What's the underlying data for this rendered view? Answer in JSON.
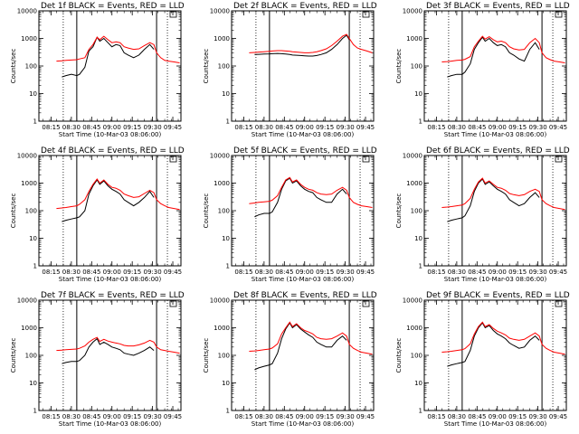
{
  "figure": {
    "x_start_label": "Start Time (10-Mar-03 08:06:00)",
    "y_label": "Counts/sec",
    "x_tick_labels": [
      "08:15",
      "08:30",
      "08:45",
      "09:00",
      "09:15",
      "09:30",
      "09:45"
    ],
    "y_tick_labels": [
      "1",
      "10",
      "100",
      "1000",
      "10000"
    ],
    "colors": {
      "events": "#000000",
      "lld": "#ff0000"
    }
  },
  "chart_data": [
    {
      "type": "line",
      "title": "Det 1f BLACK = Events, RED = LLD",
      "xlabel": "Start Time (10-Mar-03 08:06:00)",
      "ylabel": "Counts/sec",
      "x_unit": "minutes after 08:06:00",
      "xlim": [
        0,
        105
      ],
      "ylim": [
        1,
        10000
      ],
      "y_scale": "log",
      "x": [
        13,
        17,
        20,
        24,
        28,
        30,
        34,
        37,
        40,
        43,
        45,
        48,
        51,
        54,
        57,
        60,
        63,
        66,
        70,
        74,
        78,
        82,
        85,
        87,
        90,
        93,
        96,
        100,
        104
      ],
      "series": [
        {
          "name": "BLACK = Events",
          "values": [
            null,
            40,
            45,
            50,
            45,
            50,
            90,
            350,
            500,
            1100,
            800,
            1000,
            700,
            500,
            600,
            550,
            300,
            250,
            200,
            250,
            400,
            600,
            400,
            null,
            null,
            null,
            null,
            null,
            null
          ]
        },
        {
          "name": "RED = LLD",
          "values": [
            150,
            155,
            160,
            165,
            170,
            180,
            200,
            400,
            600,
            1100,
            900,
            1200,
            900,
            700,
            750,
            700,
            500,
            450,
            400,
            420,
            550,
            700,
            600,
            300,
            200,
            160,
            150,
            140,
            130
          ]
        }
      ],
      "vlines": {
        "solid": [
          28,
          87
        ],
        "dotted": [
          18,
          95
        ]
      }
    },
    {
      "type": "line",
      "title": "Det 2f BLACK = Events, RED = LLD",
      "xlabel": "Start Time (10-Mar-03 08:06:00)",
      "ylabel": "Counts/sec",
      "x_unit": "minutes after 08:06:00",
      "xlim": [
        0,
        105
      ],
      "ylim": [
        1,
        10000
      ],
      "y_scale": "log",
      "x": [
        13,
        17,
        20,
        24,
        28,
        30,
        34,
        37,
        40,
        43,
        45,
        48,
        51,
        54,
        57,
        60,
        63,
        66,
        70,
        74,
        78,
        82,
        85,
        87,
        90,
        93,
        96,
        100,
        104
      ],
      "series": [
        {
          "name": "BLACK = Events",
          "values": [
            null,
            260,
            265,
            270,
            275,
            280,
            285,
            280,
            270,
            260,
            250,
            245,
            240,
            235,
            230,
            230,
            240,
            260,
            300,
            400,
            600,
            1000,
            1300,
            900,
            null,
            null,
            null,
            null,
            null
          ]
        },
        {
          "name": "RED = LLD",
          "values": [
            300,
            310,
            320,
            330,
            340,
            350,
            360,
            360,
            350,
            340,
            330,
            320,
            310,
            300,
            300,
            310,
            330,
            360,
            420,
            550,
            800,
            1200,
            1400,
            1000,
            600,
            450,
            400,
            350,
            300
          ]
        }
      ],
      "vlines": {
        "solid": [
          28,
          87
        ],
        "dotted": [
          18,
          95
        ]
      }
    },
    {
      "type": "line",
      "title": "Det 3f BLACK = Events, RED = LLD",
      "xlabel": "Start Time (10-Mar-03 08:06:00)",
      "ylabel": "Counts/sec",
      "x_unit": "minutes after 08:06:00",
      "xlim": [
        0,
        105
      ],
      "ylim": [
        1,
        10000
      ],
      "y_scale": "log",
      "x": [
        13,
        17,
        20,
        24,
        28,
        30,
        34,
        37,
        40,
        43,
        45,
        48,
        51,
        54,
        57,
        60,
        63,
        66,
        70,
        74,
        78,
        82,
        85,
        87,
        90,
        93,
        96,
        100,
        104
      ],
      "series": [
        {
          "name": "BLACK = Events",
          "values": [
            null,
            40,
            45,
            50,
            50,
            60,
            120,
            400,
            700,
            1100,
            800,
            1000,
            700,
            550,
            600,
            500,
            300,
            250,
            180,
            150,
            400,
            700,
            400,
            null,
            null,
            null,
            null,
            null,
            null
          ]
        },
        {
          "name": "RED = LLD",
          "values": [
            140,
            145,
            150,
            160,
            165,
            175,
            220,
            500,
            800,
            1200,
            950,
            1150,
            900,
            750,
            800,
            700,
            500,
            420,
            380,
            400,
            700,
            1000,
            700,
            300,
            200,
            170,
            150,
            140,
            130
          ]
        }
      ],
      "vlines": {
        "solid": [
          28,
          87
        ],
        "dotted": [
          18,
          95
        ]
      }
    },
    {
      "type": "line",
      "title": "Det 4f BLACK = Events, RED = LLD",
      "xlabel": "Start Time (10-Mar-03 08:06:00)",
      "ylabel": "Counts/sec",
      "x_unit": "minutes after 08:06:00",
      "xlim": [
        0,
        105
      ],
      "ylim": [
        1,
        10000
      ],
      "y_scale": "log",
      "x": [
        13,
        17,
        20,
        24,
        28,
        30,
        34,
        37,
        40,
        43,
        45,
        48,
        51,
        54,
        57,
        60,
        63,
        66,
        70,
        74,
        78,
        82,
        85,
        87,
        90,
        93,
        96,
        100,
        104
      ],
      "series": [
        {
          "name": "BLACK = Events",
          "values": [
            null,
            40,
            45,
            50,
            55,
            60,
            100,
            400,
            800,
            1300,
            900,
            1200,
            800,
            600,
            500,
            400,
            250,
            200,
            150,
            200,
            300,
            500,
            300,
            null,
            null,
            null,
            null,
            null,
            null
          ]
        },
        {
          "name": "RED = LLD",
          "values": [
            120,
            125,
            130,
            140,
            150,
            170,
            250,
            500,
            900,
            1400,
            1000,
            1300,
            900,
            700,
            650,
            550,
            400,
            350,
            300,
            320,
            420,
            550,
            450,
            250,
            180,
            150,
            130,
            120,
            110
          ]
        }
      ],
      "vlines": {
        "solid": [
          28,
          87
        ],
        "dotted": [
          18,
          95
        ]
      }
    },
    {
      "type": "line",
      "title": "Det 5f BLACK = Events, RED = LLD",
      "xlabel": "Start Time (10-Mar-03 08:06:00)",
      "ylabel": "Counts/sec",
      "x_unit": "minutes after 08:06:00",
      "xlim": [
        0,
        105
      ],
      "ylim": [
        1,
        10000
      ],
      "y_scale": "log",
      "x": [
        13,
        17,
        20,
        24,
        28,
        30,
        34,
        37,
        40,
        43,
        45,
        48,
        51,
        54,
        57,
        60,
        63,
        66,
        70,
        74,
        78,
        82,
        85,
        87,
        90,
        93,
        96,
        100,
        104
      ],
      "series": [
        {
          "name": "BLACK = Events",
          "values": [
            null,
            60,
            70,
            80,
            80,
            90,
            200,
            600,
            1200,
            1500,
            1000,
            1200,
            800,
            600,
            500,
            450,
            300,
            250,
            200,
            200,
            400,
            600,
            400,
            null,
            null,
            null,
            null,
            null,
            null
          ]
        },
        {
          "name": "RED = LLD",
          "values": [
            180,
            190,
            200,
            210,
            220,
            240,
            350,
            700,
            1300,
            1600,
            1100,
            1300,
            900,
            700,
            600,
            550,
            450,
            400,
            380,
            400,
            550,
            700,
            550,
            300,
            200,
            170,
            150,
            140,
            130
          ]
        }
      ],
      "vlines": {
        "solid": [
          28,
          87
        ],
        "dotted": [
          18,
          95
        ]
      }
    },
    {
      "type": "line",
      "title": "Det 6f BLACK = Events, RED = LLD",
      "xlabel": "Start Time (10-Mar-03 08:06:00)",
      "ylabel": "Counts/sec",
      "x_unit": "minutes after 08:06:00",
      "xlim": [
        0,
        105
      ],
      "ylim": [
        1,
        10000
      ],
      "y_scale": "log",
      "x": [
        13,
        17,
        20,
        24,
        28,
        30,
        34,
        37,
        40,
        43,
        45,
        48,
        51,
        54,
        57,
        60,
        63,
        66,
        70,
        74,
        78,
        82,
        85,
        87,
        90,
        93,
        96,
        100,
        104
      ],
      "series": [
        {
          "name": "BLACK = Events",
          "values": [
            null,
            40,
            45,
            50,
            55,
            65,
            150,
            500,
            1000,
            1400,
            900,
            1100,
            800,
            600,
            500,
            400,
            250,
            200,
            150,
            180,
            300,
            450,
            300,
            null,
            null,
            null,
            null,
            null,
            null
          ]
        },
        {
          "name": "RED = LLD",
          "values": [
            130,
            135,
            140,
            150,
            160,
            180,
            280,
            600,
            1100,
            1500,
            1000,
            1200,
            900,
            700,
            650,
            550,
            420,
            380,
            350,
            380,
            500,
            600,
            500,
            250,
            180,
            150,
            130,
            120,
            110
          ]
        }
      ],
      "vlines": {
        "solid": [
          28,
          87
        ],
        "dotted": [
          18,
          95
        ]
      }
    },
    {
      "type": "line",
      "title": "Det 7f BLACK = Events, RED = LLD",
      "xlabel": "Start Time (10-Mar-03 08:06:00)",
      "ylabel": "Counts/sec",
      "x_unit": "minutes after 08:06:00",
      "xlim": [
        0,
        105
      ],
      "ylim": [
        1,
        10000
      ],
      "y_scale": "log",
      "x": [
        13,
        17,
        20,
        24,
        28,
        30,
        34,
        37,
        40,
        43,
        45,
        48,
        51,
        54,
        57,
        60,
        63,
        66,
        70,
        74,
        78,
        82,
        85,
        87,
        90,
        93,
        96,
        100,
        104
      ],
      "series": [
        {
          "name": "BLACK = Events",
          "values": [
            null,
            50,
            55,
            60,
            60,
            65,
            100,
            200,
            300,
            400,
            250,
            300,
            250,
            200,
            180,
            160,
            120,
            110,
            100,
            120,
            150,
            200,
            150,
            null,
            null,
            null,
            null,
            null,
            null
          ]
        },
        {
          "name": "RED = LLD",
          "values": [
            150,
            155,
            160,
            165,
            170,
            180,
            220,
            300,
            380,
            450,
            320,
            380,
            330,
            300,
            280,
            260,
            230,
            220,
            220,
            240,
            280,
            350,
            300,
            200,
            160,
            150,
            140,
            130,
            120
          ]
        }
      ],
      "vlines": {
        "solid": [
          28,
          87
        ],
        "dotted": [
          18,
          95
        ]
      }
    },
    {
      "type": "line",
      "title": "Det 8f BLACK = Events, RED = LLD",
      "xlabel": "Start Time (10-Mar-03 08:06:00)",
      "ylabel": "Counts/sec",
      "x_unit": "minutes after 08:06:00",
      "xlim": [
        0,
        105
      ],
      "ylim": [
        1,
        10000
      ],
      "y_scale": "log",
      "x": [
        13,
        17,
        20,
        24,
        28,
        30,
        34,
        37,
        40,
        43,
        45,
        48,
        51,
        54,
        57,
        60,
        63,
        66,
        70,
        74,
        78,
        82,
        85,
        87,
        90,
        93,
        96,
        100,
        104
      ],
      "series": [
        {
          "name": "BLACK = Events",
          "values": [
            null,
            30,
            35,
            40,
            45,
            50,
            120,
            400,
            900,
            1500,
            1000,
            1300,
            900,
            700,
            550,
            450,
            300,
            250,
            200,
            200,
            350,
            500,
            350,
            null,
            null,
            null,
            null,
            null,
            null
          ]
        },
        {
          "name": "RED = LLD",
          "values": [
            140,
            145,
            150,
            160,
            170,
            185,
            260,
            600,
            1000,
            1600,
            1100,
            1400,
            1000,
            800,
            700,
            600,
            450,
            400,
            380,
            400,
            500,
            650,
            500,
            250,
            180,
            150,
            130,
            120,
            110
          ]
        }
      ],
      "vlines": {
        "solid": [
          28,
          87
        ],
        "dotted": [
          18,
          95
        ]
      }
    },
    {
      "type": "line",
      "title": "Det 9f BLACK = Events, RED = LLD",
      "xlabel": "Start Time (10-Mar-03 08:06:00)",
      "ylabel": "Counts/sec",
      "x_unit": "minutes after 08:06:00",
      "xlim": [
        0,
        105
      ],
      "ylim": [
        1,
        10000
      ],
      "y_scale": "log",
      "x": [
        13,
        17,
        20,
        24,
        28,
        30,
        34,
        37,
        40,
        43,
        45,
        48,
        51,
        54,
        57,
        60,
        63,
        66,
        70,
        74,
        78,
        82,
        85,
        87,
        90,
        93,
        96,
        100,
        104
      ],
      "series": [
        {
          "name": "BLACK = Events",
          "values": [
            null,
            40,
            45,
            50,
            55,
            60,
            150,
            500,
            1000,
            1500,
            1000,
            1200,
            800,
            600,
            500,
            400,
            280,
            230,
            180,
            200,
            350,
            500,
            350,
            null,
            null,
            null,
            null,
            null,
            null
          ]
        },
        {
          "name": "RED = LLD",
          "values": [
            130,
            135,
            140,
            150,
            160,
            175,
            260,
            600,
            1100,
            1600,
            1100,
            1300,
            950,
            750,
            650,
            550,
            420,
            380,
            350,
            380,
            500,
            650,
            500,
            250,
            180,
            150,
            130,
            120,
            110
          ]
        }
      ],
      "vlines": {
        "solid": [
          28,
          87
        ],
        "dotted": [
          18,
          95
        ]
      }
    }
  ]
}
